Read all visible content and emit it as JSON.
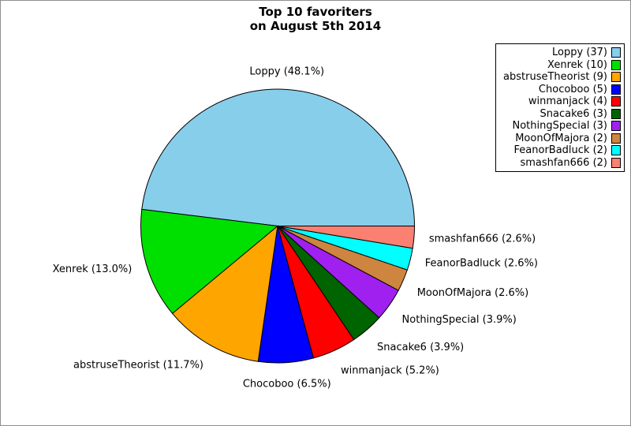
{
  "chart_data": {
    "type": "pie",
    "title": "Top 10 favoriters",
    "subtitle": "on August 5th 2014",
    "total": 77,
    "direction": "counterclockwise",
    "start_angle_deg": 0,
    "legend_position": "top-right",
    "series": [
      {
        "label": "Loppy",
        "count": 37,
        "percent": 48.1,
        "color": "#87CEEB",
        "legend_label": "Loppy (37)",
        "slice_label": "Loppy (48.1%)"
      },
      {
        "label": "Xenrek",
        "count": 10,
        "percent": 13.0,
        "color": "#00E000",
        "legend_label": "Xenrek (10)",
        "slice_label": "Xenrek (13.0%)"
      },
      {
        "label": "abstruseTheorist",
        "count": 9,
        "percent": 11.7,
        "color": "#FFA500",
        "legend_label": "abstruseTheorist (9)",
        "slice_label": "abstruseTheorist (11.7%)"
      },
      {
        "label": "Chocoboo",
        "count": 5,
        "percent": 6.5,
        "color": "#0000FF",
        "legend_label": "Chocoboo (5)",
        "slice_label": "Chocoboo (6.5%)"
      },
      {
        "label": "winmanjack",
        "count": 4,
        "percent": 5.2,
        "color": "#FF0000",
        "legend_label": "winmanjack (4)",
        "slice_label": "winmanjack (5.2%)"
      },
      {
        "label": "Snacake6",
        "count": 3,
        "percent": 3.9,
        "color": "#006400",
        "legend_label": "Snacake6 (3)",
        "slice_label": "Snacake6 (3.9%)"
      },
      {
        "label": "NothingSpecial",
        "count": 3,
        "percent": 3.9,
        "color": "#A020F0",
        "legend_label": "NothingSpecial (3)",
        "slice_label": "NothingSpecial (3.9%)"
      },
      {
        "label": "MoonOfMajora",
        "count": 2,
        "percent": 2.6,
        "color": "#CD853F",
        "legend_label": "MoonOfMajora (2)",
        "slice_label": "MoonOfMajora (2.6%)"
      },
      {
        "label": "FeanorBadluck",
        "count": 2,
        "percent": 2.6,
        "color": "#00FFFF",
        "legend_label": "FeanorBadluck (2)",
        "slice_label": "FeanorBadluck (2.6%)"
      },
      {
        "label": "smashfan666",
        "count": 2,
        "percent": 2.6,
        "color": "#FA8072",
        "legend_label": "smashfan666 (2)",
        "slice_label": "smashfan666 (2.6%)"
      }
    ]
  }
}
